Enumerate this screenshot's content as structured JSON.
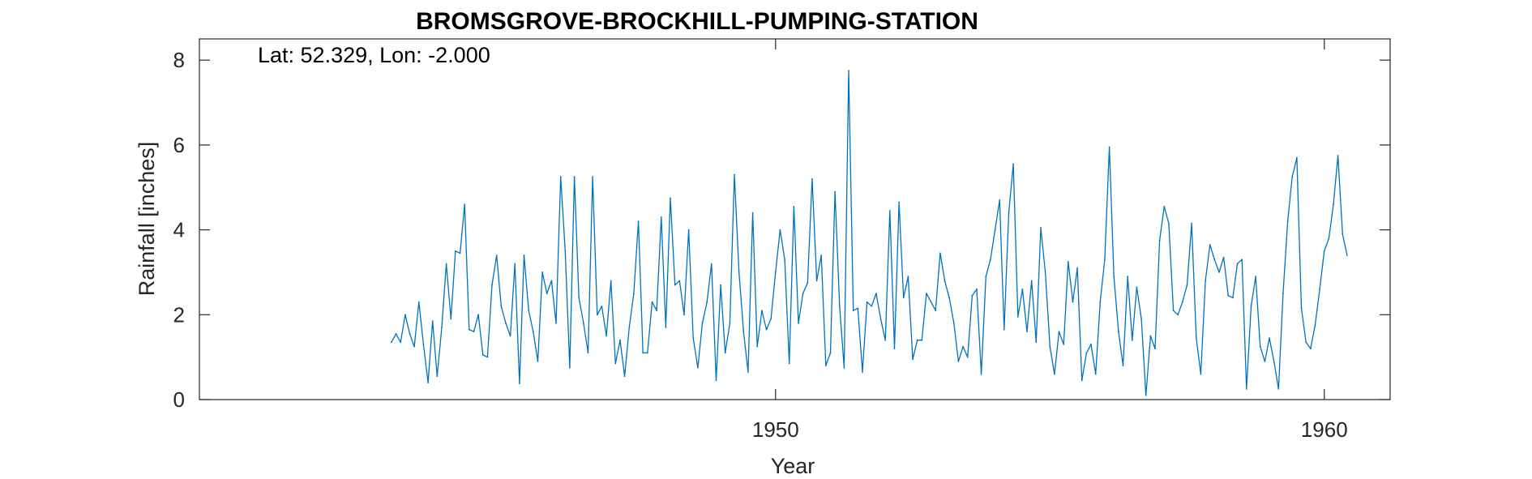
{
  "chart_data": {
    "type": "line",
    "title": "BROMSGROVE-BROCKHILL-PUMPING-STATION",
    "annotation": "Lat: 52.329, Lon: -2.000",
    "xlabel": "Year",
    "ylabel": "Rainfall [inches]",
    "xlim": [
      1939.5,
      1961.2
    ],
    "ylim": [
      0,
      8.5
    ],
    "xticks": [
      1950,
      1960
    ],
    "xtick_labels": [
      "1950",
      "1960"
    ],
    "yticks": [
      0,
      2,
      4,
      6,
      8
    ],
    "ytick_labels": [
      "0",
      "2",
      "4",
      "6",
      "8"
    ],
    "grid": false,
    "line_color": "#0072BD",
    "series": [
      {
        "x_start": 1943.0,
        "x_step": 0.08333,
        "values": [
          1.35,
          1.55,
          1.35,
          2.0,
          1.55,
          1.25,
          2.3,
          1.3,
          0.4,
          1.85,
          0.55,
          1.7,
          3.2,
          1.9,
          3.5,
          3.45,
          4.6,
          1.65,
          1.6,
          2.0,
          1.05,
          1.0,
          2.7,
          3.4,
          2.2,
          1.8,
          1.5,
          3.2,
          0.38,
          3.4,
          2.1,
          1.6,
          0.9,
          3.0,
          2.5,
          2.8,
          1.8,
          5.25,
          3.5,
          0.75,
          5.25,
          2.4,
          1.8,
          1.1,
          5.25,
          2.0,
          2.2,
          1.5,
          2.8,
          0.85,
          1.4,
          0.55,
          1.7,
          2.5,
          4.2,
          1.1,
          1.1,
          2.3,
          2.1,
          4.3,
          1.7,
          4.75,
          2.7,
          2.8,
          2.0,
          4.0,
          1.45,
          0.75,
          1.8,
          2.3,
          3.2,
          0.45,
          2.7,
          1.1,
          1.8,
          5.3,
          3.0,
          1.6,
          0.65,
          4.4,
          1.25,
          2.1,
          1.65,
          1.9,
          3.0,
          4.0,
          3.3,
          0.85,
          4.55,
          1.8,
          2.5,
          2.75,
          5.2,
          2.8,
          3.4,
          0.8,
          1.1,
          4.9,
          2.2,
          0.75,
          7.75,
          2.1,
          2.15,
          0.65,
          2.3,
          2.2,
          2.5,
          1.9,
          1.4,
          4.45,
          1.2,
          4.65,
          2.4,
          2.9,
          0.95,
          1.4,
          1.4,
          2.5,
          2.3,
          2.1,
          3.45,
          2.8,
          2.4,
          1.8,
          0.9,
          1.25,
          1.0,
          2.45,
          2.6,
          0.6,
          2.9,
          3.3,
          4.0,
          4.7,
          1.65,
          4.4,
          5.55,
          1.95,
          2.6,
          1.6,
          2.8,
          1.35,
          4.05,
          3.0,
          1.25,
          0.6,
          1.6,
          1.3,
          3.25,
          2.3,
          3.1,
          0.45,
          1.1,
          1.3,
          0.6,
          2.3,
          3.3,
          5.95,
          2.9,
          1.6,
          0.8,
          2.9,
          1.4,
          2.65,
          1.9,
          0.1,
          1.5,
          1.2,
          3.75,
          4.55,
          4.15,
          2.1,
          2.0,
          2.3,
          2.7,
          4.15,
          1.45,
          0.6,
          2.8,
          3.65,
          3.3,
          3.0,
          3.35,
          2.45,
          2.4,
          3.2,
          3.3,
          0.25,
          2.2,
          2.9,
          1.25,
          0.9,
          1.45,
          0.9,
          0.25,
          2.5,
          4.2,
          5.25,
          5.7,
          2.15,
          1.35,
          1.2,
          1.75,
          2.6,
          3.5,
          3.8,
          4.6,
          5.75,
          3.9,
          3.4
        ]
      }
    ]
  }
}
